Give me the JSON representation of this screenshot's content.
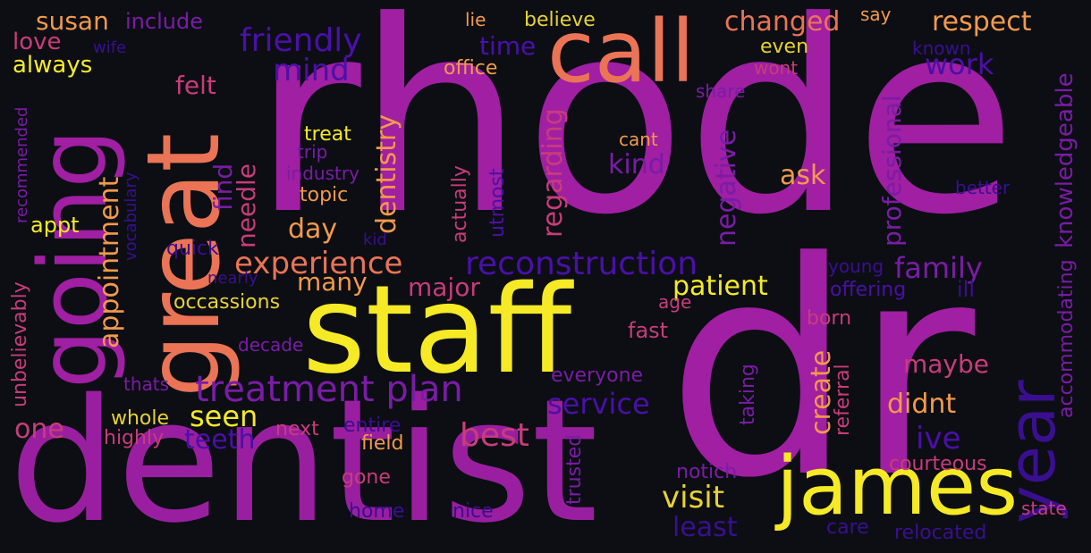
{
  "palette": {
    "background": "#0c0e14",
    "magenta": "#a01fa3",
    "pink": "#c83c7a",
    "orange": "#ea7455",
    "light_orange": "#f29a4a",
    "yellow": "#f5ea25",
    "dark_yellow": "#e8d230",
    "indigo": "#4a10a8",
    "violet": "#7a1ca6",
    "dark_indigo": "#3a0f8f"
  },
  "words": [
    {
      "text": "rhode",
      "color": "#a01fa3"
    },
    {
      "text": "dr",
      "color": "#a01fa3"
    },
    {
      "text": "dentist",
      "color": "#9a1fa0"
    },
    {
      "text": "staff",
      "color": "#f5ea25"
    },
    {
      "text": "call",
      "color": "#ea7455"
    },
    {
      "text": "great",
      "color": "#ea7455"
    },
    {
      "text": "going",
      "color": "#a01fa3"
    },
    {
      "text": "james",
      "color": "#f5ea25"
    },
    {
      "text": "year",
      "color": "#3a0f8f"
    },
    {
      "text": "treatment plan",
      "color": "#7a1ca6"
    },
    {
      "text": "reconstruction",
      "color": "#4a10a8"
    },
    {
      "text": "experience",
      "color": "#ea7455"
    },
    {
      "text": "family",
      "color": "#7a1ca6"
    },
    {
      "text": "friendly",
      "color": "#4a10a8"
    },
    {
      "text": "changed",
      "color": "#ea7455"
    },
    {
      "text": "respect",
      "color": "#f29a4a"
    },
    {
      "text": "susan",
      "color": "#f29a4a"
    },
    {
      "text": "include",
      "color": "#7a1ca6"
    },
    {
      "text": "love",
      "color": "#c83c7a"
    },
    {
      "text": "wife",
      "color": "#3a0f8f"
    },
    {
      "text": "always",
      "color": "#f5ea25"
    },
    {
      "text": "mind",
      "color": "#4a10a8"
    },
    {
      "text": "time",
      "color": "#4a10a8"
    },
    {
      "text": "lie",
      "color": "#f29a4a"
    },
    {
      "text": "believe",
      "color": "#e8d230"
    },
    {
      "text": "say",
      "color": "#f29a4a"
    },
    {
      "text": "even",
      "color": "#e8d230"
    },
    {
      "text": "known",
      "color": "#3a0f8f"
    },
    {
      "text": "wont",
      "color": "#c83c7a"
    },
    {
      "text": "office",
      "color": "#f29a4a"
    },
    {
      "text": "work",
      "color": "#4a10a8"
    },
    {
      "text": "felt",
      "color": "#c83c7a"
    },
    {
      "text": "share",
      "color": "#7a1ca6"
    },
    {
      "text": "knowledgeable",
      "color": "#7a1ca6"
    },
    {
      "text": "treat",
      "color": "#f5ea25"
    },
    {
      "text": "cant",
      "color": "#f29a4a"
    },
    {
      "text": "trip",
      "color": "#7a1ca6"
    },
    {
      "text": "industry",
      "color": "#7a1ca6"
    },
    {
      "text": "topic",
      "color": "#f29a4a"
    },
    {
      "text": "kind",
      "color": "#7a1ca6"
    },
    {
      "text": "ask",
      "color": "#f29a4a"
    },
    {
      "text": "negative",
      "color": "#7a1ca6"
    },
    {
      "text": "professional",
      "color": "#7a1ca6"
    },
    {
      "text": "better",
      "color": "#3a0f8f"
    },
    {
      "text": "recommended",
      "color": "#7a1ca6"
    },
    {
      "text": "vocabulary",
      "color": "#3a0f8f"
    },
    {
      "text": "appointment",
      "color": "#f29a4a"
    },
    {
      "text": "find",
      "color": "#7a1ca6"
    },
    {
      "text": "needle",
      "color": "#c83c7a"
    },
    {
      "text": "dentistry",
      "color": "#f29a4a"
    },
    {
      "text": "regarding",
      "color": "#c83c7a"
    },
    {
      "text": "actually",
      "color": "#c83c7a"
    },
    {
      "text": "utmost",
      "color": "#4a10a8"
    },
    {
      "text": "appt",
      "color": "#f5ea25"
    },
    {
      "text": "day",
      "color": "#f29a4a"
    },
    {
      "text": "kid",
      "color": "#3a0f8f"
    },
    {
      "text": "quick",
      "color": "#3a0f8f"
    },
    {
      "text": "nearly",
      "color": "#3a0f8f"
    },
    {
      "text": "many",
      "color": "#f29a4a"
    },
    {
      "text": "major",
      "color": "#c83c7a"
    },
    {
      "text": "patient",
      "color": "#f5ea25"
    },
    {
      "text": "young",
      "color": "#3a0f8f"
    },
    {
      "text": "offering",
      "color": "#4a10a8"
    },
    {
      "text": "ill",
      "color": "#3a0f8f"
    },
    {
      "text": "accommodating",
      "color": "#7a1ca6"
    },
    {
      "text": "unbelievably",
      "color": "#c83c7a"
    },
    {
      "text": "occassions",
      "color": "#e8d230"
    },
    {
      "text": "age",
      "color": "#c83c7a"
    },
    {
      "text": "born",
      "color": "#c83c7a"
    },
    {
      "text": "decade",
      "color": "#7a1ca6"
    },
    {
      "text": "fast",
      "color": "#c83c7a"
    },
    {
      "text": "referral",
      "color": "#c83c7a"
    },
    {
      "text": "maybe",
      "color": "#c83c7a"
    },
    {
      "text": "thats",
      "color": "#7a1ca6"
    },
    {
      "text": "everyone",
      "color": "#7a1ca6"
    },
    {
      "text": "create",
      "color": "#f29a4a"
    },
    {
      "text": "taking",
      "color": "#7a1ca6"
    },
    {
      "text": "seen",
      "color": "#f5ea25"
    },
    {
      "text": "service",
      "color": "#4a10a8"
    },
    {
      "text": "didnt",
      "color": "#f29a4a"
    },
    {
      "text": "one",
      "color": "#c83c7a"
    },
    {
      "text": "whole",
      "color": "#e8d230"
    },
    {
      "text": "entire",
      "color": "#3a0f8f"
    },
    {
      "text": "teeth",
      "color": "#4a10a8"
    },
    {
      "text": "highly",
      "color": "#c83c7a"
    },
    {
      "text": "next",
      "color": "#c83c7a"
    },
    {
      "text": "best",
      "color": "#c83c7a"
    },
    {
      "text": "field",
      "color": "#f29a4a"
    },
    {
      "text": "ive",
      "color": "#4a10a8"
    },
    {
      "text": "trusted",
      "color": "#7a1ca6"
    },
    {
      "text": "notich",
      "color": "#7a1ca6"
    },
    {
      "text": "courteous",
      "color": "#c83c7a"
    },
    {
      "text": "gone",
      "color": "#c83c7a"
    },
    {
      "text": "visit",
      "color": "#e8d230"
    },
    {
      "text": "home",
      "color": "#3a0f8f"
    },
    {
      "text": "nice",
      "color": "#3a0f8f"
    },
    {
      "text": "least",
      "color": "#3a0f8f"
    },
    {
      "text": "care",
      "color": "#3a0f8f"
    },
    {
      "text": "relocated",
      "color": "#3a0f8f"
    },
    {
      "text": "state",
      "color": "#c83c7a"
    }
  ]
}
